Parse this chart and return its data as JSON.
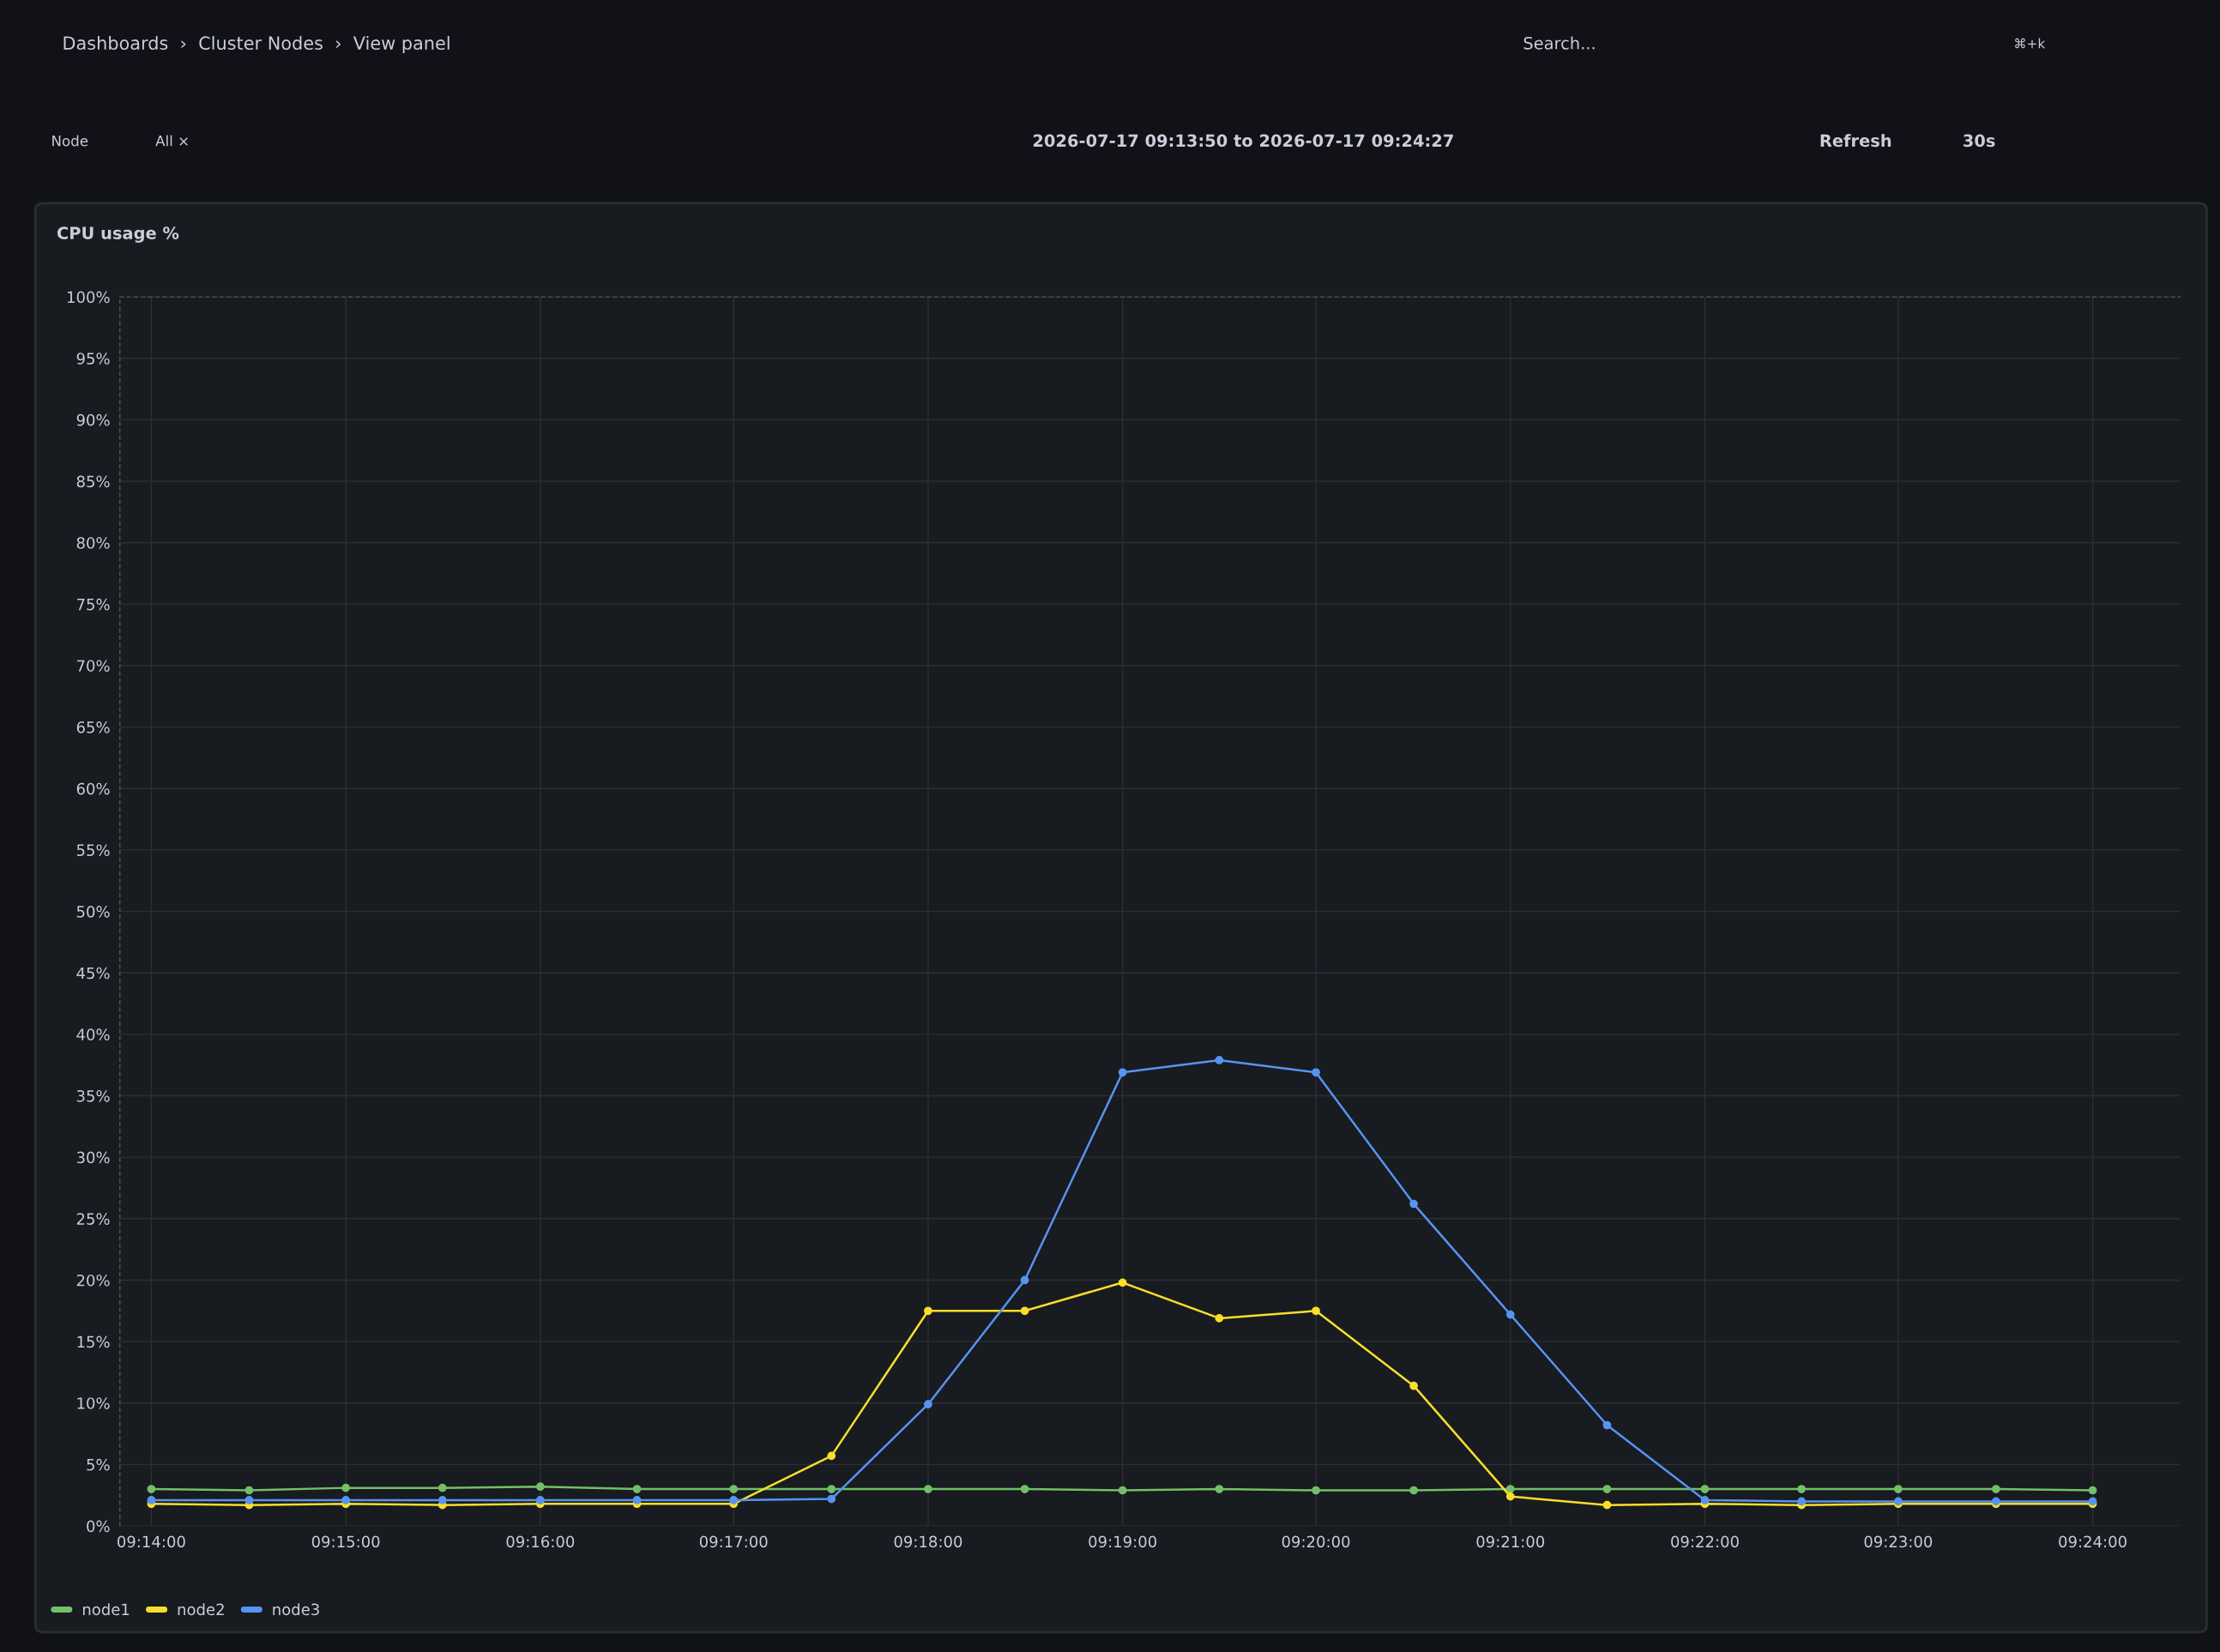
{
  "chart_data": {
    "type": "line",
    "title": "CPU usage %",
    "annotations": [
      "Dashboards  ›  Cluster Nodes  ›  View panel",
      "Node",
      "All ×",
      "2026-07-17 09:13:50 to 2026-07-17 09:24:27",
      "Refresh",
      "30s",
      "Search...",
      "⌘+k"
    ],
    "x": [
      9.2333,
      9.2417,
      9.25,
      9.2583,
      9.2667,
      9.275,
      9.2833,
      9.2917,
      9.3,
      9.3083,
      9.3167,
      9.325,
      9.3333,
      9.3417,
      9.35,
      9.3583,
      9.3667,
      9.375,
      9.3833,
      9.3917,
      9.4
    ],
    "series": [
      {
        "name": "node1",
        "color": "#73bf69",
        "values": [
          3.0,
          2.9,
          3.1,
          3.1,
          3.2,
          3.0,
          3.0,
          3.0,
          3.0,
          3.0,
          2.9,
          3.0,
          2.9,
          2.9,
          3.0,
          3.0,
          3.0,
          3.0,
          3.0,
          3.0,
          2.9
        ]
      },
      {
        "name": "node2",
        "color": "#fade2a",
        "values": [
          1.8,
          1.7,
          1.8,
          1.7,
          1.8,
          1.8,
          1.8,
          5.7,
          17.5,
          17.5,
          19.8,
          16.9,
          17.5,
          11.4,
          2.4,
          1.7,
          1.8,
          1.7,
          1.8,
          1.8,
          1.8
        ]
      },
      {
        "name": "node3",
        "color": "#5794f2",
        "values": [
          2.1,
          2.1,
          2.1,
          2.1,
          2.1,
          2.1,
          2.1,
          2.2,
          9.9,
          20.0,
          36.9,
          37.9,
          36.9,
          26.2,
          17.2,
          8.2,
          2.1,
          2.0,
          2.0,
          2.0,
          2.0
        ]
      }
    ],
    "xlim": [
      9.2306,
      9.4075
    ],
    "xticks": [
      {
        "value": 9.2333,
        "label": "09:14:00"
      },
      {
        "value": 9.25,
        "label": "09:15:00"
      },
      {
        "value": 9.2667,
        "label": "09:16:00"
      },
      {
        "value": 9.2833,
        "label": "09:17:00"
      },
      {
        "value": 9.3,
        "label": "09:18:00"
      },
      {
        "value": 9.3167,
        "label": "09:19:00"
      },
      {
        "value": 9.3333,
        "label": "09:20:00"
      },
      {
        "value": 9.35,
        "label": "09:21:00"
      },
      {
        "value": 9.3667,
        "label": "09:22:00"
      },
      {
        "value": 9.3833,
        "label": "09:23:00"
      },
      {
        "value": 9.4,
        "label": "09:24:00"
      }
    ],
    "ylim": [
      0,
      100
    ],
    "yticks": [
      {
        "value": 0,
        "label": "0%"
      },
      {
        "value": 5,
        "label": "5%"
      },
      {
        "value": 10,
        "label": "10%"
      },
      {
        "value": 15,
        "label": "15%"
      },
      {
        "value": 20,
        "label": "20%"
      },
      {
        "value": 25,
        "label": "25%"
      },
      {
        "value": 30,
        "label": "30%"
      },
      {
        "value": 35,
        "label": "35%"
      },
      {
        "value": 40,
        "label": "40%"
      },
      {
        "value": 45,
        "label": "45%"
      },
      {
        "value": 50,
        "label": "50%"
      },
      {
        "value": 55,
        "label": "55%"
      },
      {
        "value": 60,
        "label": "60%"
      },
      {
        "value": 65,
        "label": "65%"
      },
      {
        "value": 70,
        "label": "70%"
      },
      {
        "value": 75,
        "label": "75%"
      },
      {
        "value": 80,
        "label": "80%"
      },
      {
        "value": 85,
        "label": "85%"
      },
      {
        "value": 90,
        "label": "90%"
      },
      {
        "value": 95,
        "label": "95%"
      },
      {
        "value": 100,
        "label": "100%"
      }
    ],
    "grid": true,
    "legend": "bottom left",
    "marker": "circle",
    "line_style": "solid"
  }
}
